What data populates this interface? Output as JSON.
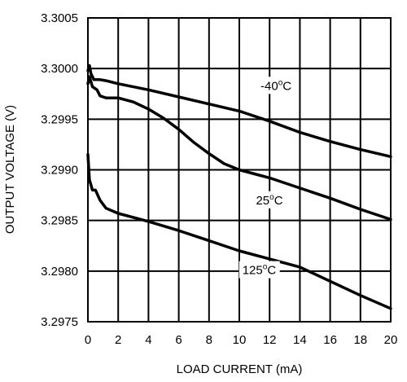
{
  "chart_data": {
    "type": "line",
    "xlabel": "LOAD CURRENT (mA)",
    "ylabel": "OUTPUT VOLTAGE (V)",
    "xlim": [
      0,
      20
    ],
    "ylim": [
      3.2975,
      3.3005
    ],
    "x_ticks": [
      "0",
      "2",
      "4",
      "6",
      "8",
      "10",
      "12",
      "14",
      "16",
      "18",
      "20"
    ],
    "y_ticks": [
      "3.2975",
      "3.2980",
      "3.2985",
      "3.2990",
      "3.2995",
      "3.3000",
      "3.3005"
    ],
    "grid": true,
    "series": [
      {
        "name": "-40°C",
        "label_parts": [
          "-40",
          "o",
          "C"
        ],
        "label_at": [
          11.4,
          3.29979
        ],
        "points": [
          [
            0,
            3.29998
          ],
          [
            0.1,
            3.30003
          ],
          [
            0.2,
            3.29995
          ],
          [
            0.4,
            3.29989
          ],
          [
            0.8,
            3.29989
          ],
          [
            1.2,
            3.29988
          ],
          [
            2,
            3.29985
          ],
          [
            4,
            3.29979
          ],
          [
            6,
            3.29972
          ],
          [
            8,
            3.29965
          ],
          [
            10,
            3.29958
          ],
          [
            12,
            3.29948
          ],
          [
            14,
            3.29937
          ],
          [
            16,
            3.29928
          ],
          [
            18,
            3.2992
          ],
          [
            20,
            3.29913
          ]
        ]
      },
      {
        "name": "25°C",
        "label_parts": [
          "25",
          "o",
          "C"
        ],
        "label_at": [
          11.1,
          3.29866
        ],
        "points": [
          [
            0,
            3.29985
          ],
          [
            0.1,
            3.29992
          ],
          [
            0.3,
            3.29982
          ],
          [
            0.6,
            3.29979
          ],
          [
            0.8,
            3.29973
          ],
          [
            1.2,
            3.29971
          ],
          [
            2,
            3.29971
          ],
          [
            3,
            3.29967
          ],
          [
            4,
            3.2996
          ],
          [
            5,
            3.29951
          ],
          [
            6,
            3.2994
          ],
          [
            7,
            3.29927
          ],
          [
            8,
            3.29916
          ],
          [
            9,
            3.29906
          ],
          [
            10,
            3.299
          ],
          [
            11,
            3.29896
          ],
          [
            12,
            3.29892
          ],
          [
            14,
            3.29882
          ],
          [
            16,
            3.29872
          ],
          [
            18,
            3.29861
          ],
          [
            20,
            3.29851
          ]
        ]
      },
      {
        "name": "125°C",
        "label_parts": [
          "125",
          "o",
          "C"
        ],
        "label_at": [
          10.2,
          3.29797
        ],
        "points": [
          [
            0,
            3.29915
          ],
          [
            0.1,
            3.2989
          ],
          [
            0.3,
            3.2988
          ],
          [
            0.5,
            3.2988
          ],
          [
            0.8,
            3.2987
          ],
          [
            1.2,
            3.29862
          ],
          [
            2,
            3.29857
          ],
          [
            3,
            3.29853
          ],
          [
            4,
            3.29849
          ],
          [
            6,
            3.2984
          ],
          [
            8,
            3.2983
          ],
          [
            10,
            3.2982
          ],
          [
            12,
            3.29812
          ],
          [
            14,
            3.29804
          ],
          [
            16,
            3.2979
          ],
          [
            18,
            3.29776
          ],
          [
            20,
            3.29763
          ]
        ]
      }
    ]
  }
}
